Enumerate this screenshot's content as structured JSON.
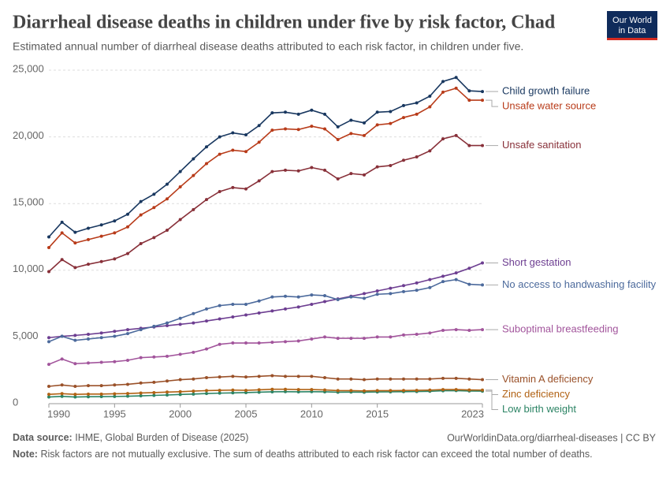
{
  "chart_data": {
    "type": "line",
    "title": "Diarrheal disease deaths in children under five by risk factor, Chad",
    "subtitle": "Estimated annual number of diarrheal disease deaths attributed to each risk factor, in children under five.",
    "logo": [
      "Our World",
      "in Data"
    ],
    "source_label": "Data source:",
    "source_text": "IHME, Global Burden of Disease (2025)",
    "url": "OurWorldinData.org/diarrheal-diseases | CC BY",
    "note_label": "Note:",
    "note_text": "Risk factors are not mutually exclusive. The sum of deaths attributed to each risk factor can exceed the total number of deaths.",
    "x": [
      1990,
      1991,
      1992,
      1993,
      1994,
      1995,
      1996,
      1997,
      1998,
      1999,
      2000,
      2001,
      2002,
      2003,
      2004,
      2005,
      2006,
      2007,
      2008,
      2009,
      2010,
      2011,
      2012,
      2013,
      2014,
      2015,
      2016,
      2017,
      2018,
      2019,
      2020,
      2021,
      2022,
      2023
    ],
    "xlim": [
      1990,
      2023
    ],
    "xticks": [
      1990,
      1995,
      2000,
      2005,
      2010,
      2015,
      2023
    ],
    "ylim": [
      0,
      25000
    ],
    "yticks": [
      0,
      {
        "value": 5000,
        "label": "5,000"
      },
      {
        "value": 10000,
        "label": "10,000"
      },
      {
        "value": 15000,
        "label": "15,000"
      },
      {
        "value": 20000,
        "label": "20,000"
      },
      {
        "value": 25000,
        "label": "25,000"
      }
    ],
    "grid": true,
    "series": [
      {
        "name": "Child growth failure",
        "color": "#18375f",
        "values": [
          12500,
          13600,
          12850,
          13150,
          13400,
          13700,
          14200,
          15150,
          15700,
          16450,
          17400,
          18350,
          19250,
          20000,
          20300,
          20150,
          20850,
          21800,
          21850,
          21700,
          22000,
          21700,
          20750,
          21250,
          21050,
          21850,
          21900,
          22350,
          22550,
          23050,
          24150,
          24450,
          23450,
          23400
        ]
      },
      {
        "name": "Unsafe water source",
        "color": "#b83b19",
        "values": [
          11700,
          12800,
          12050,
          12300,
          12550,
          12800,
          13250,
          14150,
          14700,
          15350,
          16250,
          17100,
          18000,
          18700,
          19000,
          18900,
          19600,
          20500,
          20600,
          20550,
          20800,
          20600,
          19800,
          20250,
          20100,
          20900,
          21000,
          21450,
          21700,
          22250,
          23350,
          23650,
          22750,
          22750
        ]
      },
      {
        "name": "Unsafe sanitation",
        "color": "#883039",
        "values": [
          9900,
          10800,
          10200,
          10450,
          10650,
          10850,
          11250,
          12000,
          12450,
          13000,
          13800,
          14550,
          15300,
          15900,
          16200,
          16100,
          16700,
          17400,
          17500,
          17450,
          17700,
          17500,
          16850,
          17250,
          17150,
          17750,
          17850,
          18250,
          18500,
          18950,
          19850,
          20100,
          19350,
          19350
        ]
      },
      {
        "name": "Short gestation",
        "color": "#6d3e91",
        "values": [
          4950,
          5050,
          5120,
          5200,
          5300,
          5420,
          5550,
          5650,
          5750,
          5850,
          5950,
          6050,
          6200,
          6350,
          6500,
          6650,
          6800,
          6950,
          7100,
          7250,
          7450,
          7650,
          7850,
          8050,
          8250,
          8450,
          8650,
          8850,
          9050,
          9300,
          9550,
          9800,
          10150,
          10550
        ]
      },
      {
        "name": "No access to handwashing facility",
        "color": "#4c6a9c",
        "values": [
          4650,
          5050,
          4750,
          4850,
          4950,
          5050,
          5250,
          5550,
          5800,
          6050,
          6400,
          6750,
          7100,
          7350,
          7450,
          7450,
          7700,
          8000,
          8050,
          8000,
          8150,
          8100,
          7800,
          8000,
          7900,
          8200,
          8250,
          8400,
          8500,
          8700,
          9150,
          9300,
          8950,
          8900
        ]
      },
      {
        "name": "Suboptimal breastfeeding",
        "color": "#a2559c",
        "values": [
          2950,
          3350,
          3000,
          3050,
          3100,
          3150,
          3250,
          3450,
          3500,
          3550,
          3700,
          3850,
          4100,
          4450,
          4550,
          4550,
          4550,
          4600,
          4650,
          4700,
          4850,
          5000,
          4900,
          4900,
          4900,
          5000,
          5000,
          5150,
          5200,
          5300,
          5500,
          5550,
          5500,
          5550
        ]
      },
      {
        "name": "Vitamin A deficiency",
        "color": "#9a5129",
        "values": [
          1300,
          1400,
          1300,
          1350,
          1350,
          1400,
          1450,
          1550,
          1600,
          1700,
          1800,
          1850,
          1950,
          2000,
          2050,
          2000,
          2050,
          2100,
          2050,
          2050,
          2050,
          1950,
          1850,
          1850,
          1800,
          1850,
          1850,
          1850,
          1850,
          1850,
          1900,
          1900,
          1850,
          1800
        ]
      },
      {
        "name": "Low birth weight",
        "color": "#2c8465",
        "values": [
          500,
          550,
          500,
          520,
          530,
          540,
          560,
          590,
          620,
          650,
          690,
          720,
          760,
          790,
          810,
          830,
          860,
          890,
          900,
          890,
          900,
          890,
          860,
          870,
          860,
          880,
          890,
          900,
          910,
          930,
          970,
          980,
          950,
          940
        ]
      },
      {
        "name": "Zinc deficiency",
        "color": "#b16214",
        "values": [
          700,
          750,
          700,
          720,
          720,
          740,
          760,
          800,
          830,
          870,
          900,
          940,
          980,
          1000,
          1020,
          1000,
          1040,
          1080,
          1080,
          1060,
          1060,
          1030,
          980,
          980,
          960,
          980,
          980,
          990,
          1000,
          1020,
          1060,
          1060,
          1030,
          1020
        ]
      }
    ]
  }
}
